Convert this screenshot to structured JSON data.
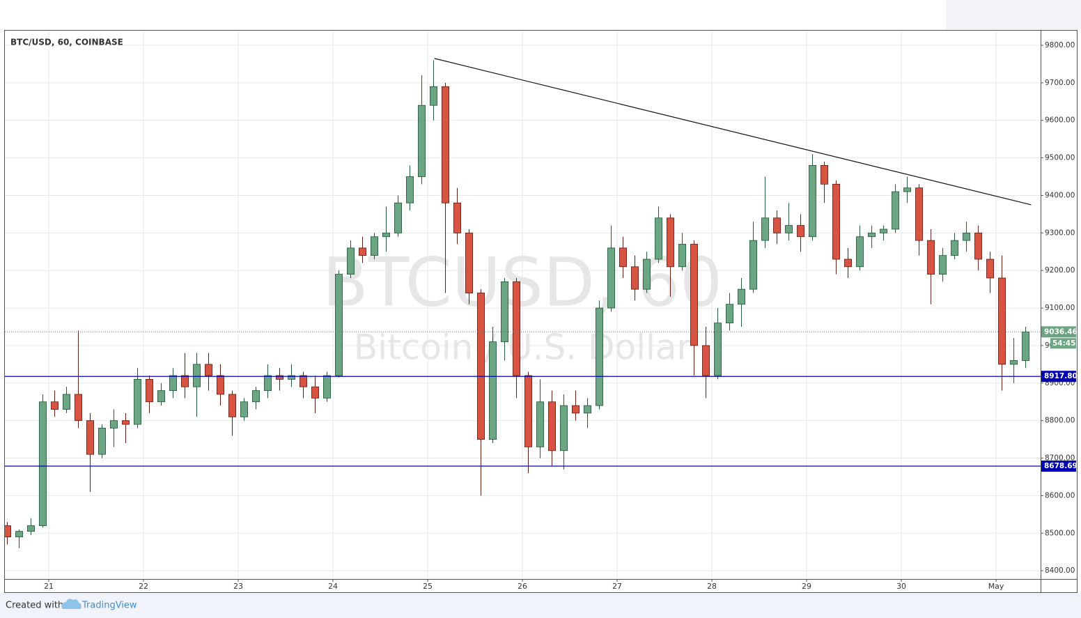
{
  "chart_data": {
    "type": "candlestick",
    "title": "BTC/USD, 60, COINBASE",
    "watermark": [
      "BTCUSD, 60",
      "Bitcoin / U.S. Dollar"
    ],
    "x": [
      20.5625,
      20.6875,
      20.8125,
      20.9375,
      21.0625,
      21.1875,
      21.3125,
      21.4375,
      21.5625,
      21.6875,
      21.8125,
      21.9375,
      22.0625,
      22.1875,
      22.3125,
      22.4375,
      22.5625,
      22.6875,
      22.8125,
      22.9375,
      23.0625,
      23.1875,
      23.3125,
      23.4375,
      23.5625,
      23.6875,
      23.8125,
      23.9375,
      24.0625,
      24.1875,
      24.3125,
      24.4375,
      24.5625,
      24.6875,
      24.8125,
      24.9375,
      25.0625,
      25.1875,
      25.3125,
      25.4375,
      25.5625,
      25.6875,
      25.8125,
      25.9375,
      26.0625,
      26.1875,
      26.3125,
      26.4375,
      26.5625,
      26.6875,
      26.8125,
      26.9375,
      27.0625,
      27.1875,
      27.3125,
      27.4375,
      27.5625,
      27.6875,
      27.8125,
      27.9375,
      28.0625,
      28.1875,
      28.3125,
      28.4375,
      28.5625,
      28.6875,
      28.8125,
      28.9375,
      29.0625,
      29.1875,
      29.3125,
      29.4375,
      29.5625,
      29.6875,
      29.8125,
      29.9375,
      30.0625,
      30.1875,
      30.3125,
      30.4375,
      30.5625,
      30.6875,
      30.8125,
      30.9375,
      31.0625,
      31.1875,
      31.3125
    ],
    "open": [
      8520,
      8490,
      8505,
      8520,
      8850,
      8830,
      8870,
      8800,
      8710,
      8780,
      8800,
      8790,
      8910,
      8850,
      8880,
      8920,
      8890,
      8950,
      8920,
      8870,
      8810,
      8850,
      8880,
      8920,
      8910,
      8920,
      8890,
      8860,
      8920,
      9190,
      9260,
      9240,
      9290,
      9300,
      9380,
      9450,
      9640,
      9690,
      9380,
      9300,
      9140,
      8750,
      9010,
      9170,
      8920,
      8730,
      8850,
      8720,
      8840,
      8820,
      8840,
      9100,
      9260,
      9210,
      9150,
      9230,
      9340,
      9210,
      9270,
      9000,
      8920,
      9060,
      9110,
      9150,
      9280,
      9340,
      9300,
      9320,
      9290,
      9480,
      9430,
      9230,
      9210,
      9290,
      9300,
      9310,
      9410,
      9420,
      9280,
      9190,
      9240,
      9280,
      9300,
      9230,
      9180,
      8950,
      8960
    ],
    "high": [
      8530,
      8510,
      8540,
      8870,
      8880,
      8890,
      9040,
      8820,
      8790,
      8830,
      8820,
      8940,
      8920,
      8900,
      8940,
      8980,
      8980,
      8980,
      8950,
      8880,
      8860,
      8890,
      8950,
      8940,
      8950,
      8930,
      8920,
      8930,
      9200,
      9280,
      9290,
      9300,
      9370,
      9400,
      9480,
      9720,
      9760,
      9700,
      9420,
      9310,
      9150,
      9050,
      9180,
      9180,
      8930,
      8910,
      8880,
      8870,
      8880,
      8860,
      9120,
      9320,
      9290,
      9240,
      9250,
      9370,
      9350,
      9300,
      9280,
      9050,
      9100,
      9140,
      9180,
      9330,
      9450,
      9360,
      9380,
      9350,
      9510,
      9490,
      9440,
      9260,
      9320,
      9320,
      9320,
      9430,
      9450,
      9430,
      9310,
      9260,
      9300,
      9330,
      9320,
      9250,
      9240,
      9020,
      9050
    ],
    "low": [
      8470,
      8460,
      8495,
      8515,
      8810,
      8820,
      8780,
      8610,
      8700,
      8730,
      8740,
      8780,
      8820,
      8840,
      8860,
      8860,
      8810,
      8880,
      8840,
      8760,
      8800,
      8830,
      8860,
      8880,
      8890,
      8860,
      8820,
      8850,
      8915,
      9180,
      9220,
      9230,
      9250,
      9290,
      9360,
      9430,
      9600,
      9140,
      9270,
      9110,
      8600,
      8740,
      8960,
      8860,
      8660,
      8700,
      8680,
      8670,
      8800,
      8780,
      8830,
      9090,
      9180,
      9120,
      9140,
      9220,
      9130,
      9200,
      8920,
      8860,
      8910,
      9040,
      9050,
      9140,
      9260,
      9270,
      9280,
      9250,
      9280,
      9380,
      9190,
      9180,
      9200,
      9260,
      9280,
      9300,
      9380,
      9240,
      9110,
      9170,
      9230,
      9250,
      9200,
      9140,
      8880,
      8900,
      8940
    ],
    "close": [
      8490,
      8505,
      8520,
      8850,
      8830,
      8870,
      8800,
      8710,
      8780,
      8800,
      8790,
      8910,
      8850,
      8880,
      8920,
      8890,
      8950,
      8920,
      8870,
      8810,
      8850,
      8880,
      8920,
      8910,
      8920,
      8890,
      8860,
      8920,
      9190,
      9260,
      9240,
      9290,
      9300,
      9380,
      9450,
      9640,
      9690,
      9380,
      9300,
      9140,
      8750,
      9010,
      9170,
      8920,
      8730,
      8850,
      8720,
      8840,
      8820,
      8840,
      9100,
      9260,
      9210,
      9150,
      9230,
      9340,
      9210,
      9270,
      9000,
      8920,
      9060,
      9110,
      9150,
      9280,
      9340,
      9300,
      9320,
      9290,
      9480,
      9430,
      9230,
      9210,
      9290,
      9300,
      9310,
      9410,
      9420,
      9280,
      9190,
      9240,
      9280,
      9300,
      9230,
      9180,
      8950,
      8960,
      9036.46
    ],
    "up_color": "#6ba583",
    "down_color": "#d75442",
    "xlim": [
      20.537,
      31.47
    ],
    "xticks": [
      21,
      22,
      23,
      24,
      25,
      26,
      27,
      28,
      29,
      30,
      {
        "value": 31,
        "label": "May"
      }
    ],
    "ylim": [
      8378,
      9839
    ],
    "yticks": [
      {
        "value": 8400,
        "label": "8400.00"
      },
      {
        "value": 8500,
        "label": "8500.00"
      },
      {
        "value": 8600,
        "label": "8600.00"
      },
      {
        "value": 8700,
        "label": "8700.00"
      },
      {
        "value": 8800,
        "label": "8800.00"
      },
      {
        "value": 8900,
        "label": "8900.00"
      },
      {
        "value": 9000,
        "label": "9000.00"
      },
      {
        "value": 9100,
        "label": "9100.00"
      },
      {
        "value": 9200,
        "label": "9200.00"
      },
      {
        "value": 9300,
        "label": "9300.00"
      },
      {
        "value": 9400,
        "label": "9400.00"
      },
      {
        "value": 9500,
        "label": "9500.00"
      },
      {
        "value": 9600,
        "label": "9600.00"
      },
      {
        "value": 9700,
        "label": "9700.00"
      },
      {
        "value": 9800,
        "label": "9800.00"
      }
    ],
    "grid": true,
    "levels": [
      {
        "value": 8917.8,
        "label": "8917.80",
        "color": "#0000b3"
      },
      {
        "value": 8678.69,
        "label": "8678.69",
        "color": "#0000b3"
      }
    ],
    "last_price": {
      "value": 9036.46,
      "label": "9036.46",
      "countdown": "54:45",
      "color": "#6ba583"
    },
    "trendline": {
      "x": [
        25.07,
        31.37
      ],
      "y": [
        9765,
        9375
      ]
    }
  },
  "footer": {
    "text": "Created with",
    "brand": "TradingView"
  }
}
